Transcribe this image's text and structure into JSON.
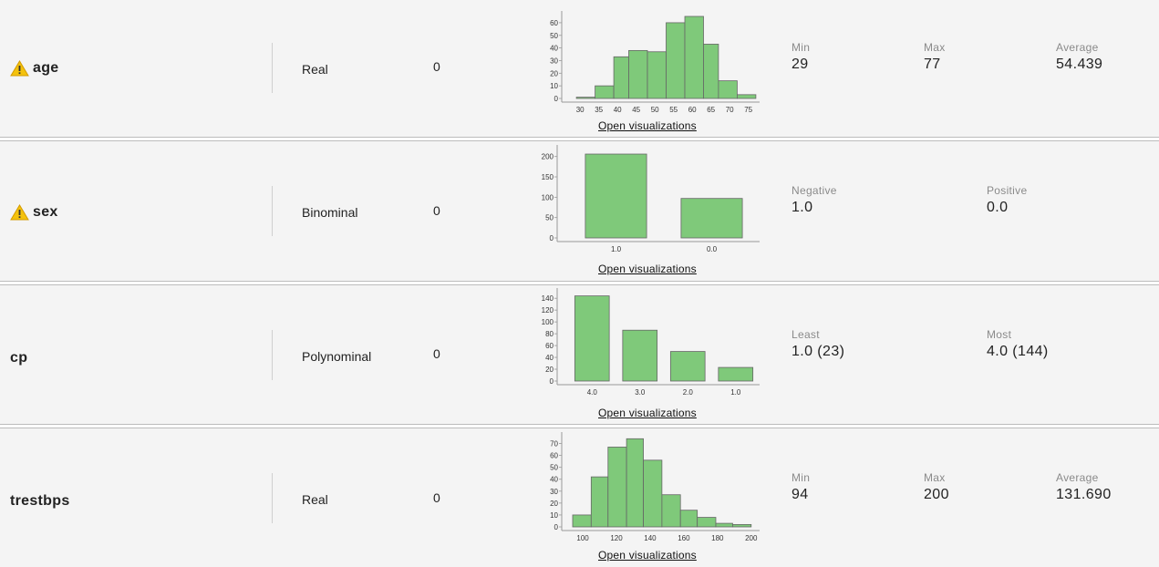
{
  "link_label": "Open visualizations",
  "rows": [
    {
      "name": "age",
      "warning": true,
      "type": "Real",
      "missing": "0",
      "stats": [
        {
          "label": "Min",
          "value": "29"
        },
        {
          "label": "Max",
          "value": "77"
        },
        {
          "label": "Average",
          "value": "54.439"
        }
      ]
    },
    {
      "name": "sex",
      "warning": true,
      "type": "Binominal",
      "missing": "0",
      "stats": [
        {
          "label": "Negative",
          "value": "1.0"
        },
        {
          "label": "Positive",
          "value": "0.0"
        }
      ]
    },
    {
      "name": "cp",
      "warning": false,
      "type": "Polynominal",
      "missing": "0",
      "stats": [
        {
          "label": "Least",
          "value": "1.0 (23)"
        },
        {
          "label": "Most",
          "value": "4.0 (144)"
        }
      ]
    },
    {
      "name": "trestbps",
      "warning": false,
      "type": "Real",
      "missing": "0",
      "stats": [
        {
          "label": "Min",
          "value": "94"
        },
        {
          "label": "Max",
          "value": "200"
        },
        {
          "label": "Average",
          "value": "131.690"
        }
      ]
    }
  ],
  "chart_data": [
    {
      "type": "bar",
      "xlim": [
        28,
        78
      ],
      "ylim": [
        0,
        65
      ],
      "x_ticks": [
        30,
        35,
        40,
        45,
        50,
        55,
        60,
        65,
        70,
        75
      ],
      "y_ticks": [
        0,
        10,
        20,
        30,
        40,
        50,
        60
      ],
      "bins": [
        [
          29,
          34,
          1
        ],
        [
          34,
          39,
          10
        ],
        [
          39,
          43,
          33
        ],
        [
          43,
          48,
          38
        ],
        [
          48,
          53,
          37
        ],
        [
          53,
          58,
          60
        ],
        [
          58,
          63,
          65
        ],
        [
          63,
          67,
          43
        ],
        [
          67,
          72,
          14
        ],
        [
          72,
          77,
          3
        ]
      ]
    },
    {
      "type": "bar",
      "categories": [
        "1.0",
        "0.0"
      ],
      "values": [
        206,
        97
      ],
      "ylim": [
        0,
        215
      ],
      "y_ticks": [
        0,
        50,
        100,
        150,
        200
      ]
    },
    {
      "type": "bar",
      "categories": [
        "4.0",
        "3.0",
        "2.0",
        "1.0"
      ],
      "values": [
        144,
        86,
        50,
        23
      ],
      "ylim": [
        0,
        148
      ],
      "y_ticks": [
        0,
        20,
        40,
        60,
        80,
        100,
        120,
        140
      ]
    },
    {
      "type": "bar",
      "xlim": [
        94,
        205
      ],
      "ylim": [
        0,
        75
      ],
      "x_ticks": [
        100,
        120,
        140,
        160,
        180,
        200
      ],
      "y_ticks": [
        0,
        10,
        20,
        30,
        40,
        50,
        60,
        70
      ],
      "bins": [
        [
          94,
          105,
          10
        ],
        [
          105,
          115,
          42
        ],
        [
          115,
          126,
          67
        ],
        [
          126,
          136,
          74
        ],
        [
          136,
          147,
          56
        ],
        [
          147,
          158,
          27
        ],
        [
          158,
          168,
          14
        ],
        [
          168,
          179,
          8
        ],
        [
          179,
          189,
          3
        ],
        [
          189,
          200,
          2
        ]
      ]
    }
  ]
}
